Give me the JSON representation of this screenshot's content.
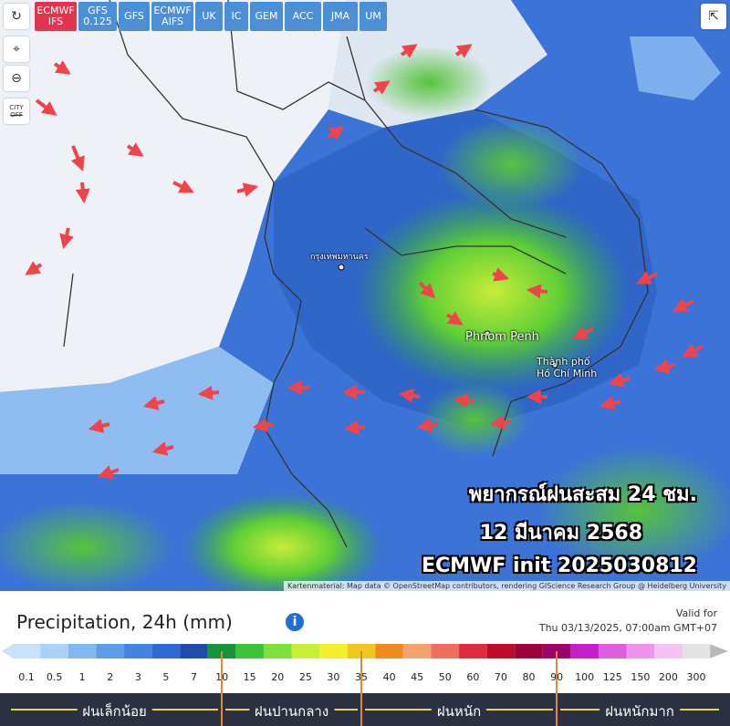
{
  "toolbar": {
    "models": [
      "ECMWF IFS",
      "GFS 0.125",
      "GFS",
      "ECMWF AIFS",
      "UK",
      "IC",
      "GEM",
      "ACC",
      "JMA",
      "UM"
    ],
    "active": "ECMWF IFS",
    "city_toggle": [
      "CITY",
      "OFF"
    ]
  },
  "map_labels": [
    "กรุงเทพมหานคร",
    "Phnom Penh",
    "Thành phố Hồ Chí Minh"
  ],
  "overlay": [
    "พยากรณ์ฝนสะสม 24 ชม.",
    "12 มีนาคม 2568",
    "ECMWF init 2025030812"
  ],
  "attribution": "Kartenmaterial: Map data © OpenStreetMap contributors, rendering GIScience Research Group @ Heidelberg University",
  "legend": {
    "title": "Precipitation, 24h (mm)",
    "valid_label": "Valid for",
    "valid_time": "Thu 03/13/2025, 07:00am GMT+07",
    "ticks": [
      0.1,
      0.5,
      1,
      2,
      3,
      5,
      7,
      10,
      15,
      20,
      25,
      30,
      35,
      40,
      45,
      50,
      60,
      70,
      80,
      90,
      100,
      125,
      150,
      200,
      300
    ],
    "colors": [
      "#a8d2f8",
      "#82b8f0",
      "#5f9ce8",
      "#4583e0",
      "#2f68cf",
      "#1e4cab",
      "#17933a",
      "#3fc33b",
      "#7fdf3b",
      "#c6ef3a",
      "#f4ef2c",
      "#f3c51f",
      "#ee8b1f",
      "#f4a370",
      "#ef6d5d",
      "#df2c3c",
      "#be0b2c",
      "#9e003c",
      "#9e006b",
      "#c61fc8",
      "#de5ce0",
      "#ef92f0",
      "#f4c2f5",
      "#e4e4e4"
    ],
    "start_color": "#c8e2fb",
    "end_color": "#b8b8b8",
    "categories": [
      "ฝนเล็กน้อย",
      "ฝนปานกลาง",
      "ฝนหนัก",
      "ฝนหนักมาก"
    ],
    "category_breaks": [
      10,
      35,
      90
    ]
  }
}
